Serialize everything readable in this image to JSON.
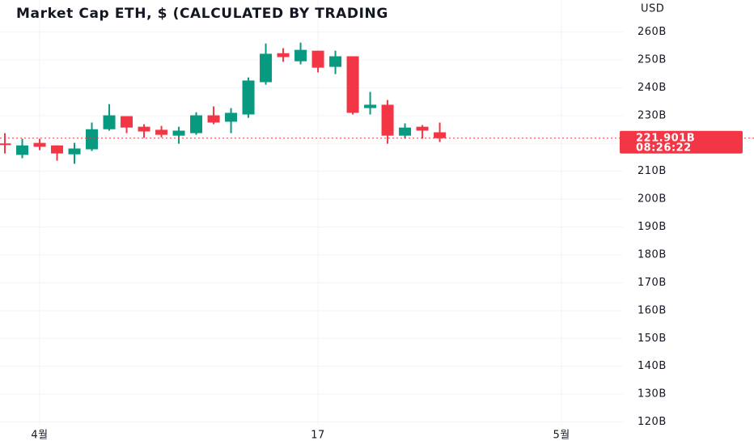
{
  "chart_data": {
    "type": "candlestick",
    "title": "Market Cap ETH, $ (CALCULATED BY TRADING",
    "currency": "USD",
    "x": [
      0,
      1,
      2,
      3,
      4,
      5,
      6,
      7,
      8,
      9,
      10,
      11,
      12,
      13,
      14,
      15,
      16,
      17,
      18,
      19,
      20,
      21,
      22,
      23,
      24,
      25
    ],
    "open": [
      220.0,
      215.9,
      220.2,
      219.3,
      216.1,
      217.9,
      225.1,
      229.8,
      226.0,
      224.9,
      222.8,
      223.7,
      230.1,
      227.8,
      230.4,
      242.0,
      252.4,
      249.5,
      253.3,
      247.5,
      251.3,
      232.7,
      233.9,
      222.8,
      226.0,
      224.0
    ],
    "high": [
      223.7,
      221.7,
      221.7,
      219.3,
      220.2,
      227.5,
      234.1,
      229.8,
      226.9,
      226.3,
      226.0,
      231.2,
      233.3,
      232.7,
      243.7,
      255.9,
      254.2,
      256.2,
      253.3,
      253.3,
      251.3,
      238.5,
      235.6,
      227.2,
      226.6,
      227.5
    ],
    "low": [
      216.4,
      214.7,
      217.6,
      213.8,
      212.7,
      217.3,
      224.6,
      223.7,
      222.0,
      222.2,
      219.9,
      223.1,
      226.9,
      223.7,
      229.2,
      241.1,
      249.3,
      248.4,
      245.5,
      244.9,
      230.4,
      230.4,
      219.9,
      221.7,
      221.7,
      220.5
    ],
    "close": [
      219.5,
      219.3,
      218.8,
      216.4,
      218.2,
      225.1,
      230.1,
      225.7,
      224.3,
      223.1,
      224.6,
      230.1,
      227.5,
      231.0,
      242.6,
      252.2,
      251.0,
      253.6,
      247.2,
      251.3,
      231.0,
      233.9,
      222.8,
      225.7,
      224.6,
      221.9
    ],
    "up_color": "#089981",
    "down_color": "#f23645",
    "last_price": {
      "value": 221.901,
      "label": "221.901B"
    },
    "countdown": "08:26:22",
    "xlim": [
      -0.28,
      35.53
    ],
    "xticks": [
      {
        "value": 2,
        "label": "4월"
      },
      {
        "value": 18,
        "label": "17"
      },
      {
        "value": 32,
        "label": "5월"
      }
    ],
    "ylim": [
      119,
      271.5
    ],
    "yticks": [
      {
        "value": 120,
        "label": "120B"
      },
      {
        "value": 130,
        "label": "130B"
      },
      {
        "value": 140,
        "label": "140B"
      },
      {
        "value": 150,
        "label": "150B"
      },
      {
        "value": 160,
        "label": "160B"
      },
      {
        "value": 170,
        "label": "170B"
      },
      {
        "value": 180,
        "label": "180B"
      },
      {
        "value": 190,
        "label": "190B"
      },
      {
        "value": 200,
        "label": "200B"
      },
      {
        "value": 210,
        "label": "210B"
      },
      {
        "value": 220,
        "label": "220B"
      },
      {
        "value": 230,
        "label": "230B"
      },
      {
        "value": 240,
        "label": "240B"
      },
      {
        "value": 250,
        "label": "250B"
      },
      {
        "value": 260,
        "label": "260B"
      }
    ],
    "grid": true
  }
}
